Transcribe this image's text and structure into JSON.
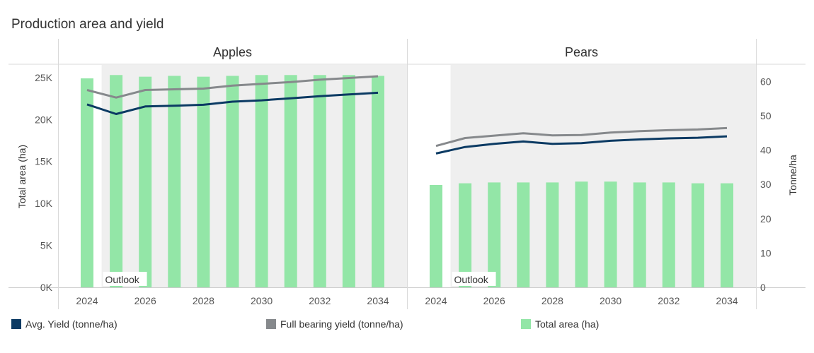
{
  "chart_data": {
    "type": "bar+line",
    "title": "Production area and yield",
    "x": [
      2024,
      2025,
      2026,
      2027,
      2028,
      2029,
      2030,
      2031,
      2032,
      2033,
      2034
    ],
    "xticks": [
      "2024",
      "2026",
      "2028",
      "2030",
      "2032",
      "2034"
    ],
    "outlook_label": "Outlook",
    "outlook_start": 2025,
    "left_axis": {
      "label": "Total area (ha)",
      "range": [
        0,
        26500
      ],
      "ticks": [
        "0K",
        "5K",
        "10K",
        "15K",
        "20K",
        "25K"
      ],
      "tick_values": [
        0,
        5000,
        10000,
        15000,
        20000,
        25000
      ]
    },
    "right_axis": {
      "label": "Tonne/ha",
      "range": [
        0,
        64.8
      ],
      "ticks": [
        "0",
        "10",
        "20",
        "30",
        "40",
        "50",
        "60"
      ],
      "tick_values": [
        0,
        10,
        20,
        30,
        40,
        50,
        60
      ]
    },
    "panels": [
      {
        "name": "Apples",
        "total_area": [
          24900,
          25300,
          25100,
          25200,
          25100,
          25200,
          25300,
          25300,
          25300,
          25300,
          25200
        ],
        "avg_yield": [
          53.3,
          50.5,
          52.7,
          52.9,
          53.2,
          54.1,
          54.5,
          55.1,
          55.7,
          56.2,
          56.7
        ],
        "full_bearing_yield": [
          57.5,
          55.3,
          57.5,
          57.7,
          57.9,
          58.8,
          59.3,
          59.8,
          60.5,
          61.0,
          61.5
        ]
      },
      {
        "name": "Pears",
        "total_area": [
          12200,
          12400,
          12500,
          12500,
          12500,
          12600,
          12600,
          12500,
          12500,
          12400,
          12400
        ],
        "avg_yield": [
          39.0,
          40.9,
          41.8,
          42.5,
          41.8,
          42.0,
          42.7,
          43.1,
          43.4,
          43.6,
          44.0
        ],
        "full_bearing_yield": [
          41.2,
          43.5,
          44.2,
          44.9,
          44.3,
          44.4,
          45.1,
          45.5,
          45.8,
          46.0,
          46.4
        ]
      }
    ],
    "series": [
      {
        "name": "Avg. Yield (tonne/ha)",
        "type": "line",
        "axis": "right",
        "color": "#0b3a63"
      },
      {
        "name": "Full bearing yield (tonne/ha)",
        "type": "line",
        "axis": "right",
        "color": "#86898c"
      },
      {
        "name": "Total area (ha)",
        "type": "bar",
        "axis": "left",
        "color": "#93e6a7"
      }
    ],
    "legend_position": "bottom",
    "outlook_color": "#efefef"
  }
}
